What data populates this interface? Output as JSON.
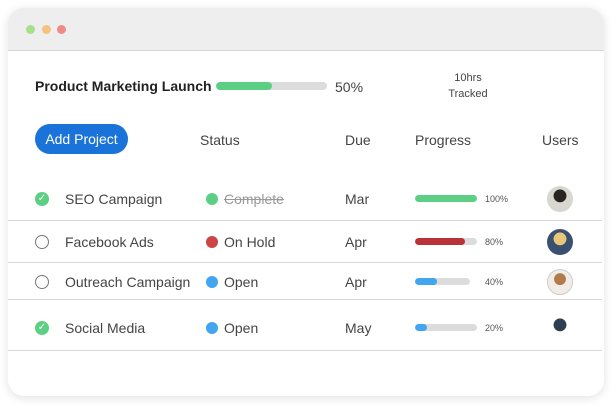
{
  "window": {
    "controls": [
      {
        "name": "minimize",
        "color": "#a8df8a"
      },
      {
        "name": "zoom",
        "color": "#f4c27e"
      },
      {
        "name": "close",
        "color": "#ef8a84"
      }
    ]
  },
  "project": {
    "title": "Product Marketing Launch",
    "progress_pct": 50,
    "progress_label": "50%",
    "tracked_hours": "10hrs",
    "tracked_label": "Tracked"
  },
  "toolbar": {
    "add_label": "Add Project"
  },
  "columns": {
    "status": "Status",
    "due": "Due",
    "progress": "Progress",
    "users": "Users"
  },
  "rows": [
    {
      "name": "SEO Campaign",
      "done": true,
      "status": "Complete",
      "status_color": "#5ccf85",
      "strikethrough": true,
      "due": "Mar",
      "progress": 100,
      "progress_label": "100%",
      "bar_color": "#5ccf85"
    },
    {
      "name": "Facebook Ads",
      "done": false,
      "status": "On Hold",
      "status_color": "#cc4444",
      "due": "Apr",
      "progress": 80,
      "progress_label": "80%",
      "bar_color": "#b83238"
    },
    {
      "name": "Outreach Campaign",
      "done": false,
      "status": "Open",
      "status_color": "#42a5f0",
      "due": "Apr",
      "progress": 40,
      "progress_label": "40%",
      "bar_color": "#42a5f0"
    },
    {
      "name": "Social Media",
      "done": true,
      "status": "Open",
      "status_color": "#42a5f0",
      "due": "May",
      "progress": 20,
      "progress_label": "20%",
      "bar_color": "#42a5f0"
    }
  ]
}
